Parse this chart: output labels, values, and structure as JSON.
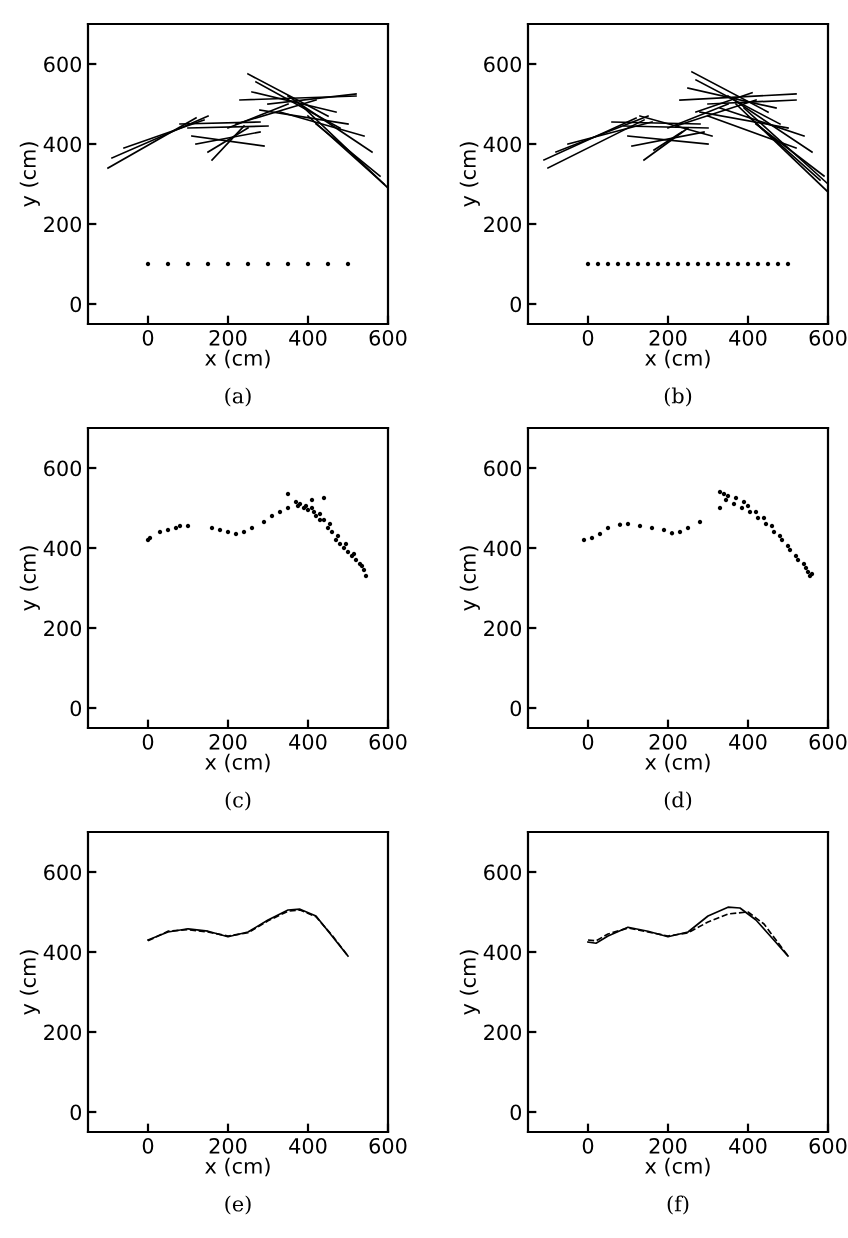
{
  "chart_data": [
    {
      "type": "line",
      "xlabel": "x (cm)",
      "ylabel": "y (cm)",
      "annotations": [
        "(a)"
      ],
      "xlim": [
        -150,
        600
      ],
      "ylim": [
        -50,
        700
      ],
      "xticks": [
        0,
        200,
        400,
        600
      ],
      "yticks": [
        0,
        200,
        400,
        600
      ],
      "grid": false,
      "legend": false,
      "series": [
        {
          "color": "#000000",
          "x": [
            -100,
            120
          ],
          "values": [
            340,
            465
          ]
        },
        {
          "color": "#000000",
          "x": [
            -90,
            150
          ],
          "values": [
            365,
            470
          ]
        },
        {
          "color": "#000000",
          "x": [
            -60,
            140
          ],
          "values": [
            390,
            460
          ]
        },
        {
          "color": "#000000",
          "x": [
            80,
            280
          ],
          "values": [
            450,
            455
          ]
        },
        {
          "color": "#000000",
          "x": [
            100,
            300
          ],
          "values": [
            440,
            445
          ]
        },
        {
          "color": "#000000",
          "x": [
            150,
            250
          ],
          "values": [
            380,
            440
          ]
        },
        {
          "color": "#000000",
          "x": [
            160,
            240
          ],
          "values": [
            360,
            445
          ]
        },
        {
          "color": "#000000",
          "x": [
            110,
            290
          ],
          "values": [
            420,
            395
          ]
        },
        {
          "color": "#000000",
          "x": [
            120,
            280
          ],
          "values": [
            400,
            430
          ]
        },
        {
          "color": "#000000",
          "x": [
            200,
            350
          ],
          "values": [
            440,
            500
          ]
        },
        {
          "color": "#000000",
          "x": [
            220,
            420
          ],
          "values": [
            450,
            510
          ]
        },
        {
          "color": "#000000",
          "x": [
            250,
            450
          ],
          "values": [
            575,
            470
          ]
        },
        {
          "color": "#000000",
          "x": [
            270,
            480
          ],
          "values": [
            555,
            440
          ]
        },
        {
          "color": "#000000",
          "x": [
            260,
            470
          ],
          "values": [
            530,
            480
          ]
        },
        {
          "color": "#000000",
          "x": [
            230,
            520
          ],
          "values": [
            510,
            520
          ]
        },
        {
          "color": "#000000",
          "x": [
            300,
            520
          ],
          "values": [
            500,
            525
          ]
        },
        {
          "color": "#000000",
          "x": [
            280,
            500
          ],
          "values": [
            485,
            450
          ]
        },
        {
          "color": "#000000",
          "x": [
            350,
            560
          ],
          "values": [
            520,
            380
          ]
        },
        {
          "color": "#000000",
          "x": [
            380,
            600
          ],
          "values": [
            500,
            290
          ]
        },
        {
          "color": "#000000",
          "x": [
            400,
            590
          ],
          "values": [
            470,
            300
          ]
        },
        {
          "color": "#000000",
          "x": [
            330,
            540
          ],
          "values": [
            480,
            420
          ]
        },
        {
          "color": "#000000",
          "x": [
            420,
            580
          ],
          "values": [
            450,
            320
          ]
        },
        {
          "type": "scatter",
          "marker": "circle",
          "color": "#000000",
          "x": [
            0,
            50,
            100,
            150,
            200,
            250,
            300,
            350,
            400,
            450,
            500
          ],
          "values": [
            100,
            100,
            100,
            100,
            100,
            100,
            100,
            100,
            100,
            100,
            100
          ]
        }
      ]
    },
    {
      "type": "line",
      "xlabel": "x (cm)",
      "ylabel": "y (cm)",
      "annotations": [
        "(b)"
      ],
      "xlim": [
        -150,
        600
      ],
      "ylim": [
        -50,
        700
      ],
      "xticks": [
        0,
        200,
        400,
        600
      ],
      "yticks": [
        0,
        200,
        400,
        600
      ],
      "grid": false,
      "legend": false,
      "series": [
        {
          "color": "#000000",
          "x": [
            -110,
            120
          ],
          "values": [
            360,
            465
          ]
        },
        {
          "color": "#000000",
          "x": [
            -100,
            140
          ],
          "values": [
            340,
            460
          ]
        },
        {
          "color": "#000000",
          "x": [
            -80,
            150
          ],
          "values": [
            380,
            470
          ]
        },
        {
          "color": "#000000",
          "x": [
            -50,
            160
          ],
          "values": [
            400,
            455
          ]
        },
        {
          "color": "#000000",
          "x": [
            60,
            280
          ],
          "values": [
            455,
            450
          ]
        },
        {
          "color": "#000000",
          "x": [
            90,
            300
          ],
          "values": [
            445,
            440
          ]
        },
        {
          "color": "#000000",
          "x": [
            140,
            250
          ],
          "values": [
            360,
            440
          ]
        },
        {
          "color": "#000000",
          "x": [
            165,
            235
          ],
          "values": [
            385,
            430
          ]
        },
        {
          "color": "#000000",
          "x": [
            100,
            300
          ],
          "values": [
            420,
            400
          ]
        },
        {
          "color": "#000000",
          "x": [
            110,
            290
          ],
          "values": [
            395,
            430
          ]
        },
        {
          "color": "#000000",
          "x": [
            130,
            310
          ],
          "values": [
            470,
            420
          ]
        },
        {
          "color": "#000000",
          "x": [
            200,
            350
          ],
          "values": [
            440,
            500
          ]
        },
        {
          "color": "#000000",
          "x": [
            220,
            420
          ],
          "values": [
            445,
            510
          ]
        },
        {
          "color": "#000000",
          "x": [
            270,
            410
          ],
          "values": [
            480,
            528
          ]
        },
        {
          "color": "#000000",
          "x": [
            260,
            450
          ],
          "values": [
            580,
            480
          ]
        },
        {
          "color": "#000000",
          "x": [
            270,
            480
          ],
          "values": [
            560,
            450
          ]
        },
        {
          "color": "#000000",
          "x": [
            250,
            470
          ],
          "values": [
            540,
            490
          ]
        },
        {
          "color": "#000000",
          "x": [
            230,
            520
          ],
          "values": [
            510,
            525
          ]
        },
        {
          "color": "#000000",
          "x": [
            300,
            520
          ],
          "values": [
            500,
            510
          ]
        },
        {
          "color": "#000000",
          "x": [
            280,
            500
          ],
          "values": [
            480,
            440
          ]
        },
        {
          "color": "#000000",
          "x": [
            350,
            560
          ],
          "values": [
            520,
            380
          ]
        },
        {
          "color": "#000000",
          "x": [
            370,
            600
          ],
          "values": [
            500,
            280
          ]
        },
        {
          "color": "#000000",
          "x": [
            390,
            600
          ],
          "values": [
            490,
            300
          ]
        },
        {
          "color": "#000000",
          "x": [
            400,
            580
          ],
          "values": [
            470,
            310
          ]
        },
        {
          "color": "#000000",
          "x": [
            330,
            540
          ],
          "values": [
            490,
            420
          ]
        },
        {
          "color": "#000000",
          "x": [
            420,
            590
          ],
          "values": [
            450,
            320
          ]
        },
        {
          "color": "#000000",
          "x": [
            300,
            520
          ],
          "values": [
            470,
            390
          ]
        },
        {
          "type": "scatter",
          "marker": "circle",
          "color": "#000000",
          "x": [
            0,
            25,
            50,
            75,
            100,
            125,
            150,
            175,
            200,
            225,
            250,
            275,
            300,
            325,
            350,
            375,
            400,
            425,
            450,
            475,
            500
          ],
          "values": [
            100,
            100,
            100,
            100,
            100,
            100,
            100,
            100,
            100,
            100,
            100,
            100,
            100,
            100,
            100,
            100,
            100,
            100,
            100,
            100,
            100
          ]
        }
      ]
    },
    {
      "type": "scatter",
      "marker": "circle",
      "xlabel": "x (cm)",
      "ylabel": "y (cm)",
      "annotations": [
        "(c)"
      ],
      "xlim": [
        -150,
        600
      ],
      "ylim": [
        -50,
        700
      ],
      "xticks": [
        0,
        200,
        400,
        600
      ],
      "yticks": [
        0,
        200,
        400,
        600
      ],
      "grid": false,
      "legend": false,
      "series": [
        {
          "color": "#000000",
          "x": [
            0,
            5,
            30,
            50,
            70,
            80,
            100,
            160,
            180,
            200,
            220,
            240,
            260,
            290,
            310,
            330,
            350,
            350,
            370,
            380,
            390,
            400,
            410,
            420,
            430,
            440,
            450,
            460,
            470,
            480,
            490,
            500,
            510,
            520,
            530,
            540,
            545,
            410,
            430,
            440,
            375,
            395,
            415,
            455,
            475,
            495,
            515,
            535
          ],
          "values": [
            420,
            425,
            440,
            445,
            450,
            455,
            455,
            450,
            445,
            440,
            435,
            440,
            450,
            465,
            480,
            490,
            500,
            535,
            515,
            510,
            500,
            495,
            520,
            480,
            470,
            525,
            450,
            440,
            420,
            410,
            400,
            390,
            380,
            370,
            360,
            345,
            330,
            500,
            485,
            470,
            505,
            505,
            490,
            460,
            430,
            410,
            385,
            355
          ]
        }
      ]
    },
    {
      "type": "scatter",
      "marker": "circle",
      "xlabel": "x (cm)",
      "ylabel": "y (cm)",
      "annotations": [
        "(d)"
      ],
      "xlim": [
        -150,
        600
      ],
      "ylim": [
        -50,
        700
      ],
      "xticks": [
        0,
        200,
        400,
        600
      ],
      "yticks": [
        0,
        200,
        400,
        600
      ],
      "grid": false,
      "legend": false,
      "series": [
        {
          "color": "#000000",
          "x": [
            -10,
            10,
            30,
            50,
            80,
            100,
            130,
            160,
            190,
            210,
            230,
            250,
            280,
            330,
            330,
            340,
            350,
            370,
            390,
            400,
            420,
            440,
            460,
            480,
            500,
            520,
            540,
            550,
            560,
            345,
            365,
            385,
            405,
            425,
            445,
            465,
            485,
            505,
            525,
            545,
            555
          ],
          "values": [
            420,
            425,
            435,
            450,
            458,
            460,
            455,
            450,
            445,
            437,
            440,
            450,
            465,
            500,
            540,
            535,
            530,
            525,
            515,
            505,
            490,
            475,
            455,
            430,
            405,
            380,
            360,
            340,
            335,
            520,
            510,
            500,
            490,
            475,
            460,
            440,
            420,
            395,
            370,
            350,
            330
          ]
        }
      ]
    },
    {
      "type": "line",
      "xlabel": "x (cm)",
      "ylabel": "y (cm)",
      "annotations": [
        "(e)"
      ],
      "xlim": [
        -150,
        600
      ],
      "ylim": [
        -50,
        700
      ],
      "xticks": [
        0,
        200,
        400,
        600
      ],
      "yticks": [
        0,
        200,
        400,
        600
      ],
      "grid": false,
      "legend": false,
      "series": [
        {
          "color": "#000000",
          "line_style": "solid",
          "x": [
            0,
            50,
            100,
            150,
            200,
            250,
            300,
            350,
            380,
            420,
            460,
            500
          ],
          "values": [
            430,
            450,
            458,
            452,
            438,
            450,
            480,
            505,
            507,
            490,
            440,
            390
          ]
        },
        {
          "color": "#000000",
          "line_style": "dashed",
          "x": [
            0,
            50,
            100,
            150,
            200,
            250,
            300,
            350,
            380,
            420,
            460,
            500
          ],
          "values": [
            428,
            452,
            456,
            450,
            440,
            448,
            478,
            502,
            505,
            488,
            442,
            390
          ]
        }
      ]
    },
    {
      "type": "line",
      "xlabel": "x (cm)",
      "ylabel": "y (cm)",
      "annotations": [
        "(f)"
      ],
      "xlim": [
        -150,
        600
      ],
      "ylim": [
        -50,
        700
      ],
      "xticks": [
        0,
        200,
        400,
        600
      ],
      "yticks": [
        0,
        200,
        400,
        600
      ],
      "grid": false,
      "legend": false,
      "series": [
        {
          "color": "#000000",
          "line_style": "solid",
          "x": [
            0,
            20,
            50,
            100,
            150,
            200,
            250,
            300,
            350,
            380,
            420,
            460,
            500
          ],
          "values": [
            425,
            422,
            440,
            462,
            452,
            438,
            450,
            490,
            512,
            510,
            480,
            435,
            390
          ]
        },
        {
          "color": "#000000",
          "line_style": "dashed",
          "x": [
            0,
            20,
            50,
            100,
            150,
            200,
            250,
            300,
            350,
            400,
            440,
            470,
            500
          ],
          "values": [
            430,
            428,
            445,
            460,
            450,
            440,
            448,
            475,
            495,
            500,
            470,
            430,
            390
          ]
        }
      ]
    }
  ]
}
